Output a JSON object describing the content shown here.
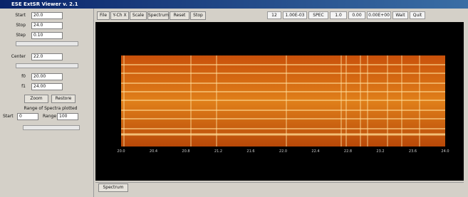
{
  "header": {
    "title": "ESE ExtSR Viewer v. 2.1"
  },
  "left_panel": {
    "fields": [
      {
        "label": "Start",
        "value": "20.0"
      },
      {
        "label": "Stop",
        "value": "24.0"
      },
      {
        "label": "Step",
        "value": "0.10"
      },
      {
        "label": "Center",
        "value": "22.0"
      },
      {
        "label": "f0",
        "value": "20.00"
      },
      {
        "label": "f1",
        "value": "24.00"
      }
    ],
    "buttons": [
      "Zoom",
      "Restore"
    ],
    "range_title": "Range of Spectra plotted",
    "range_fields": [
      {
        "label": "Start",
        "value": "0"
      },
      {
        "label": "Range",
        "value": "100"
      }
    ]
  },
  "toolbar": {
    "buttons": [
      "File",
      "Y-Ch X",
      "Scale",
      "Spectrum",
      "Reset",
      "Stop"
    ],
    "status": [
      "12",
      "1.00E-03",
      "SPEC",
      "1.0",
      "0.00",
      "0.00E+00",
      "Wait",
      "Quit"
    ]
  },
  "plot": {
    "x_tick_labels": [
      "20.0",
      "20.4",
      "20.8",
      "21.2",
      "21.6",
      "22.0",
      "22.4",
      "22.8",
      "23.2",
      "23.6",
      "24.0"
    ]
  },
  "tabs": [
    "Spectrum"
  ]
}
